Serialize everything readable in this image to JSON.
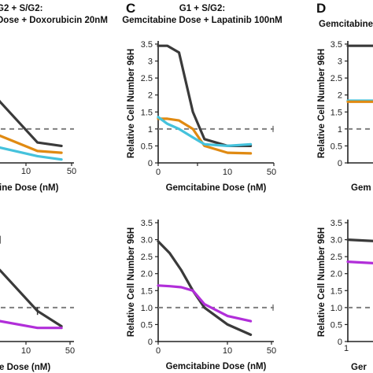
{
  "colors": {
    "black": "#3a3a3a",
    "orange": "#e08a12",
    "cyan": "#45c2dc",
    "magenta": "#b12ed9",
    "reference": "#7f7f7f"
  },
  "panel_letters": {
    "c": "C",
    "d": "D"
  },
  "panel_b": {
    "title_line1": "G2 + S/G2:",
    "title_line2": "Dose + Doxorubicin 20nM",
    "x_ticks": [
      "10",
      "50"
    ],
    "xlabel_top": "bine Dose (nM)",
    "xlabel_bottom": "ne Dose (nM)"
  },
  "panel_c": {
    "title_line1": "G1 + S/G2:",
    "title_line2": "Gemcitabine Dose + Lapatinib 100nM"
  },
  "panel_d": {
    "title_line1": "Gemcitabine",
    "ylabel": "Relative Cell Number 96H",
    "xlabel_top": "Gem",
    "xlabel_bottom": "Ger",
    "y_ticks_top": [
      "0",
      "0.5",
      "1",
      "1.5",
      "2",
      "2.5",
      "3",
      "3.5"
    ],
    "y_ticks_bottom": [
      "0",
      "0.5",
      "1.0",
      "1.5",
      "2.0",
      "2.5",
      "3.0",
      "3.5"
    ],
    "x_tick_bottom": "1"
  },
  "chart_data": [
    {
      "id": "B-top",
      "type": "line",
      "ylim": [
        0,
        3.5
      ],
      "series": [
        {
          "color_key": "black",
          "x": [
            1,
            4,
            15,
            35
          ],
          "y": [
            3.2,
            1.8,
            0.6,
            0.5
          ]
        },
        {
          "color_key": "orange",
          "x": [
            1,
            4,
            15,
            35
          ],
          "y": [
            1.0,
            0.8,
            0.35,
            0.3
          ]
        },
        {
          "color_key": "cyan",
          "x": [
            1,
            4,
            15,
            35
          ],
          "y": [
            0.6,
            0.45,
            0.2,
            0.1
          ]
        }
      ],
      "reference_y": 1.0
    },
    {
      "id": "B-bottom",
      "type": "line",
      "ylim": [
        0,
        3.5
      ],
      "series": [
        {
          "color_key": "black",
          "x": [
            1,
            4,
            15,
            35
          ],
          "y": [
            3.0,
            2.1,
            0.9,
            0.45
          ]
        },
        {
          "color_key": "magenta",
          "x": [
            1,
            4,
            15,
            35
          ],
          "y": [
            0.95,
            0.6,
            0.4,
            0.4
          ]
        }
      ],
      "reference_y": 1.0
    },
    {
      "id": "C-top",
      "type": "line",
      "title": "Gemcitabine Dose + Lapatinib 100nM",
      "xlabel": "Gemcitabine Dose (nM)",
      "ylabel": "Relative Cell Number 96H",
      "ylim": [
        0,
        3.5
      ],
      "y_ticks": [
        "0",
        "0.5",
        "1",
        "1.5",
        "2",
        "2.5",
        "3",
        "3.5"
      ],
      "x_ticks": [
        "0",
        "10",
        "20",
        "30",
        "40",
        "50"
      ],
      "series": [
        {
          "color_key": "black",
          "x": [
            0,
            4,
            9,
            15,
            20,
            30,
            40
          ],
          "y": [
            3.45,
            3.45,
            3.25,
            1.5,
            0.7,
            0.5,
            0.5
          ]
        },
        {
          "color_key": "orange",
          "x": [
            0,
            4,
            9,
            15,
            20,
            30,
            40
          ],
          "y": [
            1.3,
            1.3,
            1.25,
            1.0,
            0.5,
            0.3,
            0.28
          ]
        },
        {
          "color_key": "cyan",
          "x": [
            0,
            4,
            9,
            15,
            20,
            30,
            40
          ],
          "y": [
            1.35,
            1.15,
            1.0,
            0.75,
            0.55,
            0.5,
            0.55
          ]
        }
      ],
      "reference_y": 1.0
    },
    {
      "id": "C-bottom",
      "type": "line",
      "xlabel": "Gemcitabine Dose (nM)",
      "ylabel": "Relative Cell Number 96H",
      "ylim": [
        0,
        3.5
      ],
      "y_ticks": [
        "0",
        "0.5",
        "1.0",
        "1.5",
        "2.0",
        "2.5",
        "3.0",
        "3.5"
      ],
      "x_ticks": [
        "0",
        "10",
        "20",
        "30",
        "40",
        "50"
      ],
      "series": [
        {
          "color_key": "black",
          "x": [
            0,
            5,
            10,
            15,
            20,
            30,
            40
          ],
          "y": [
            2.95,
            2.6,
            2.1,
            1.5,
            1.0,
            0.5,
            0.2
          ]
        },
        {
          "color_key": "magenta",
          "x": [
            0,
            5,
            10,
            15,
            20,
            30,
            40
          ],
          "y": [
            1.65,
            1.63,
            1.6,
            1.5,
            1.1,
            0.75,
            0.6
          ]
        }
      ],
      "reference_y": 1.0
    },
    {
      "id": "D-top",
      "type": "line",
      "ylim": [
        0,
        3.5
      ],
      "series": [
        {
          "color_key": "black",
          "x": [
            0,
            1
          ],
          "y": [
            3.45,
            3.45
          ]
        },
        {
          "color_key": "cyan",
          "x": [
            0,
            1
          ],
          "y": [
            1.83,
            1.83
          ]
        },
        {
          "color_key": "orange",
          "x": [
            0,
            1
          ],
          "y": [
            1.8,
            1.8
          ]
        }
      ],
      "reference_y": 1.0
    },
    {
      "id": "D-bottom",
      "type": "line",
      "ylim": [
        0,
        3.5
      ],
      "series": [
        {
          "color_key": "black",
          "x": [
            0,
            1
          ],
          "y": [
            3.0,
            2.95
          ]
        },
        {
          "color_key": "magenta",
          "x": [
            0,
            1
          ],
          "y": [
            2.35,
            2.3
          ]
        }
      ],
      "reference_y": 1.0
    }
  ]
}
